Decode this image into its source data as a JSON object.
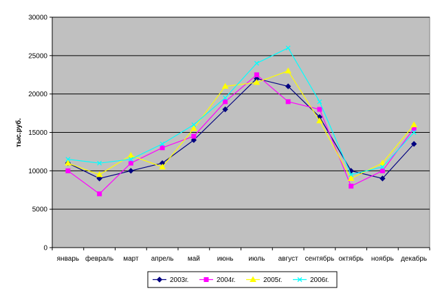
{
  "chart_data": {
    "type": "line",
    "title": "",
    "xlabel": "",
    "ylabel": "тыс.руб.",
    "ylim": [
      0,
      30000
    ],
    "ytick_step": 5000,
    "yticks": [
      "0",
      "5000",
      "10000",
      "15000",
      "20000",
      "25000",
      "30000"
    ],
    "grid": true,
    "plot_background": "#c0c0c0",
    "legend_position": "bottom",
    "categories": [
      "январь",
      "февраль",
      "март",
      "апрель",
      "май",
      "июнь",
      "июль",
      "август",
      "сентябрь",
      "октябрь",
      "ноябрь",
      "декабрь"
    ],
    "series": [
      {
        "name": "2003г.",
        "color": "#000080",
        "marker": "diamond",
        "values": [
          11000,
          9000,
          10000,
          11000,
          14000,
          18000,
          22000,
          21000,
          17000,
          10000,
          9000,
          13500
        ]
      },
      {
        "name": "2004г.",
        "color": "#ff00ff",
        "marker": "square",
        "values": [
          10000,
          7000,
          11000,
          13000,
          14500,
          19000,
          22500,
          19000,
          18000,
          8000,
          10000,
          15500
        ]
      },
      {
        "name": "2005г.",
        "color": "#ffff00",
        "marker": "triangle",
        "values": [
          11000,
          9500,
          12000,
          10500,
          15500,
          21000,
          21500,
          23000,
          16500,
          9000,
          11000,
          16000
        ]
      },
      {
        "name": "2006г.",
        "color": "#00ffff",
        "marker": "x",
        "values": [
          11500,
          11000,
          11500,
          13500,
          16000,
          19500,
          24000,
          26000,
          19000,
          9500,
          10500,
          15000
        ]
      }
    ]
  }
}
